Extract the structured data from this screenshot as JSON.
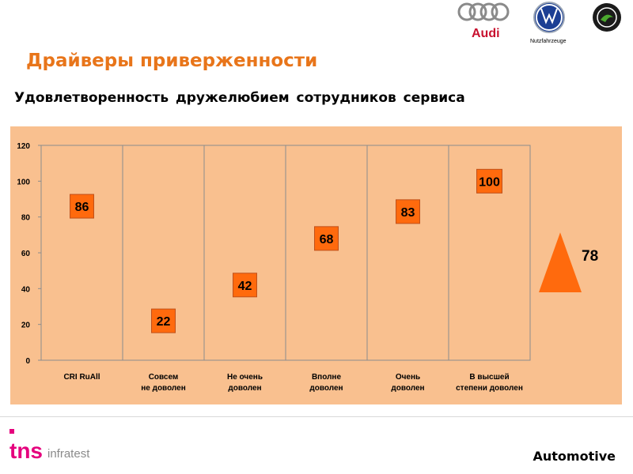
{
  "slide": {
    "title": "Драйверы приверженности",
    "subtitle": "Удовлетворенность  дружелюбием  сотрудников  сервиса",
    "footer_right": "Automotive"
  },
  "logos": {
    "audi": "Audi",
    "vw_caption": "Nutzfahrzeuge",
    "skoda": "ŠKODA AUTO",
    "tns": "tns",
    "tns_suffix": "infratest"
  },
  "colors": {
    "title": "#e8751a",
    "panel": "#f9c08f",
    "marker": "#ff6a0d",
    "marker_border": "#c0501a",
    "triangle": "#ff6a0d"
  },
  "chart_data": {
    "type": "scatter",
    "categories": [
      "CRI RuAll",
      "Совсем\nне доволен",
      "Не очень\nдоволен",
      "Вполне\nдоволен",
      "Очень\nдоволен",
      "В высшей\nстепени доволен"
    ],
    "values": [
      86,
      22,
      42,
      68,
      83,
      100
    ],
    "data_labels": [
      "86",
      "22",
      "42",
      "68",
      "83",
      "100"
    ],
    "yticks": [
      0,
      20,
      40,
      60,
      80,
      100,
      120
    ],
    "ylim": [
      0,
      120
    ],
    "grid": "vertical separators",
    "legend": "none",
    "side_indicator": {
      "value": 78,
      "label": "78",
      "shape": "triangle"
    }
  }
}
